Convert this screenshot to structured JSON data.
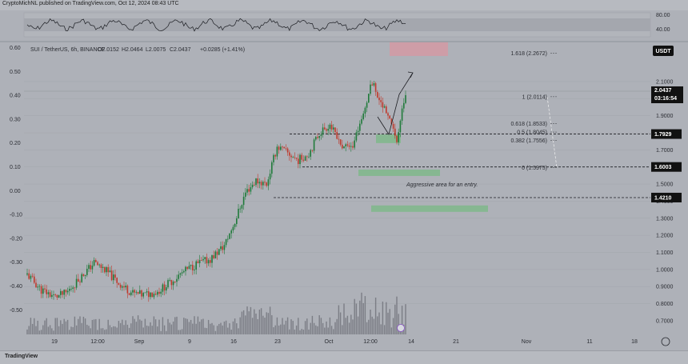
{
  "header": {
    "publish_line": "CryptoMichNL published on TradingView.com, Oct 12, 2024 08:43 UTC"
  },
  "footer": {
    "logo_text": "TradingView"
  },
  "symbol_line": {
    "name": "SUI / TetherUS, 6h, BINANCE",
    "open": "O2.0152",
    "high": "H2.0464",
    "low": "L2.0075",
    "close": "C2.0437",
    "change": "+0.0285 (+1.41%)"
  },
  "currency_badge": "USDT",
  "last_price": {
    "value": "2.0437",
    "countdown": "03:16:54"
  },
  "oscillator_axis": [
    "80.00",
    "40.00"
  ],
  "left_axis": [
    "0.60",
    "0.50",
    "0.40",
    "0.30",
    "0.20",
    "0.10",
    "0.00",
    "-0.10",
    "-0.20",
    "-0.30",
    "-0.40",
    "-0.50"
  ],
  "right_axis": [
    "2.1000",
    "2.0000",
    "1.9000",
    "1.8000",
    "1.7000",
    "1.6000",
    "1.5000",
    "1.4000",
    "1.3000",
    "1.2000",
    "1.1000",
    "1.0000",
    "0.9000",
    "0.8000",
    "0.7000"
  ],
  "time_axis": [
    "19",
    "12:00",
    "Sep",
    "9",
    "16",
    "23",
    "Oct",
    "12:00",
    "14",
    "21",
    "Nov",
    "11",
    "18"
  ],
  "fib_labels": [
    "1.618 (2.2672)",
    "1 (2.0114)",
    "0.618 (1.8533)",
    "0.5 (1.8045)",
    "0.382 (1.7556)",
    "0 (1.5975)"
  ],
  "level_tags": [
    "1.7929",
    "1.6003",
    "1.4210"
  ],
  "annotation": "Aggressive area for an entry.",
  "colors": {
    "background": "#aeb1b8",
    "bull": "#1f7a3a",
    "bear": "#c0392b",
    "entry_zone": "#7fb98a",
    "target_zone": "#d49aa3",
    "tag_bg": "#111111",
    "tag_text": "#ffffff"
  },
  "chart_data": {
    "type": "candlestick",
    "symbol": "SUI / TetherUS",
    "interval": "6h",
    "exchange": "BINANCE",
    "price_range": [
      0.62,
      2.32
    ],
    "horizontal_levels": [
      1.7929,
      1.6003,
      1.421
    ],
    "fibonacci": {
      "1.618": 2.2672,
      "1": 2.0114,
      "0.618": 1.8533,
      "0.5": 1.8045,
      "0.382": 1.7556,
      "0": 1.5975
    },
    "zones": [
      {
        "kind": "target",
        "low": 2.25,
        "high": 2.33
      },
      {
        "kind": "entry",
        "low": 1.74,
        "high": 1.79
      },
      {
        "kind": "entry",
        "low": 1.565,
        "high": 1.585
      },
      {
        "kind": "entry",
        "low": 1.35,
        "high": 1.375
      }
    ],
    "path_points": [
      {
        "i": 0,
        "price": 0.97
      },
      {
        "i": 8,
        "price": 0.88
      },
      {
        "i": 16,
        "price": 0.84
      },
      {
        "i": 22,
        "price": 0.86
      },
      {
        "i": 30,
        "price": 0.95
      },
      {
        "i": 38,
        "price": 1.04
      },
      {
        "i": 44,
        "price": 1.0
      },
      {
        "i": 52,
        "price": 0.92
      },
      {
        "i": 60,
        "price": 0.86
      },
      {
        "i": 66,
        "price": 0.85
      },
      {
        "i": 74,
        "price": 0.87
      },
      {
        "i": 82,
        "price": 0.93
      },
      {
        "i": 88,
        "price": 0.98
      },
      {
        "i": 96,
        "price": 1.03
      },
      {
        "i": 104,
        "price": 1.06
      },
      {
        "i": 112,
        "price": 1.14
      },
      {
        "i": 118,
        "price": 1.28
      },
      {
        "i": 124,
        "price": 1.45
      },
      {
        "i": 130,
        "price": 1.52
      },
      {
        "i": 136,
        "price": 1.5
      },
      {
        "i": 142,
        "price": 1.72
      },
      {
        "i": 148,
        "price": 1.68
      },
      {
        "i": 154,
        "price": 1.64
      },
      {
        "i": 160,
        "price": 1.68
      },
      {
        "i": 166,
        "price": 1.8
      },
      {
        "i": 172,
        "price": 1.85
      },
      {
        "i": 178,
        "price": 1.72
      },
      {
        "i": 184,
        "price": 1.7
      },
      {
        "i": 190,
        "price": 1.88
      },
      {
        "i": 196,
        "price": 2.1
      },
      {
        "i": 202,
        "price": 1.96
      },
      {
        "i": 206,
        "price": 1.86
      },
      {
        "i": 210,
        "price": 1.76
      },
      {
        "i": 215,
        "price": 2.04
      }
    ]
  }
}
